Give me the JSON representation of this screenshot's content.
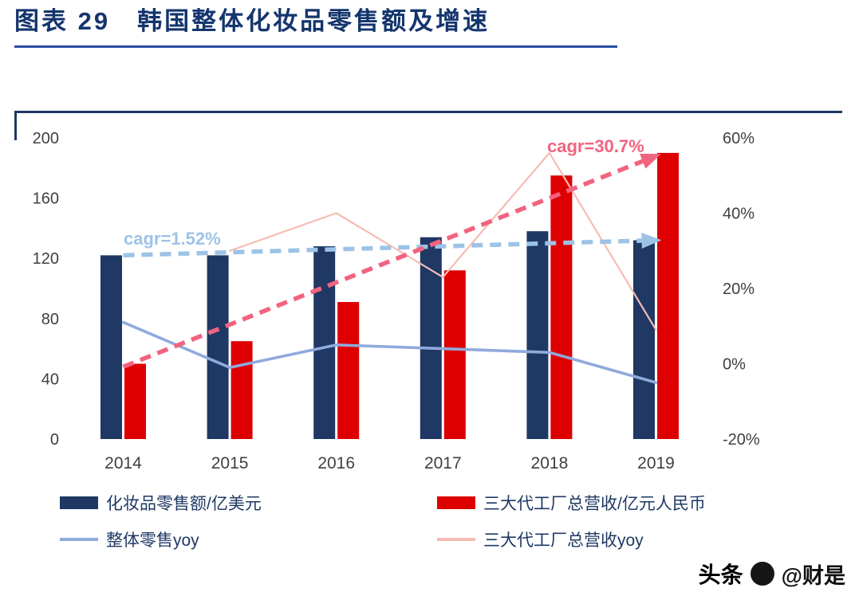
{
  "page": {
    "title": "图表 29　韩国整体化妆品零售额及增速"
  },
  "watermark": {
    "platform": "头条",
    "handle": "@财是"
  },
  "chart_data": {
    "type": "bar",
    "subtype": "grouped-bars-with-yoy-lines",
    "title": "韩国整体化妆品零售额及增速",
    "grid": false,
    "legend_position": "bottom",
    "categories": [
      "2014",
      "2015",
      "2016",
      "2017",
      "2018",
      "2019"
    ],
    "axes": {
      "left": {
        "range": [
          0,
          200
        ],
        "ticks": [
          0,
          40,
          80,
          120,
          160,
          200
        ]
      },
      "right": {
        "range": [
          -20,
          60
        ],
        "ticks": [
          -20,
          0,
          20,
          40,
          60
        ],
        "tick_labels": [
          "-20%",
          "0%",
          "20%",
          "40%",
          "60%"
        ]
      }
    },
    "series": [
      {
        "name": "化妆品零售额/亿美元",
        "type": "bar",
        "axis": "left",
        "color": "#1F3864",
        "values": [
          122,
          122,
          128,
          134,
          138,
          132
        ]
      },
      {
        "name": "三大代工厂总营收/亿元人民币",
        "type": "bar",
        "axis": "left",
        "color": "#DE0000",
        "values": [
          50,
          65,
          91,
          112,
          175,
          190
        ]
      },
      {
        "name": "整体零售yoy",
        "type": "line",
        "axis": "right",
        "color": "#8FAADC",
        "values": [
          11,
          -1,
          5,
          4,
          3,
          -5
        ]
      },
      {
        "name": "三大代工厂总营收yoy",
        "type": "line",
        "axis": "right",
        "color": "#F6BCB4",
        "values": [
          null,
          30,
          40,
          23,
          56,
          9
        ]
      }
    ],
    "annotations": [
      {
        "text": "cagr=1.52%",
        "color": "#9DC3E6",
        "axis": "left",
        "from": {
          "category_index": 0,
          "value": 122
        },
        "to": {
          "category_index": 5,
          "value": 132
        }
      },
      {
        "text": "cagr=30.7%",
        "color": "#F2637F",
        "axis": "left",
        "from": {
          "category_index": 0,
          "value": 48
        },
        "to": {
          "category_index": 5,
          "value": 188
        }
      }
    ],
    "legend": [
      {
        "label": "化妆品零售额/亿美元",
        "swatch": "rect",
        "color": "#1F3864"
      },
      {
        "label": "三大代工厂总营收/亿元人民币",
        "swatch": "rect",
        "color": "#DE0000"
      },
      {
        "label": "整体零售yoy",
        "swatch": "line",
        "color": "#8FAADC"
      },
      {
        "label": "三大代工厂总营收yoy",
        "swatch": "line",
        "color": "#F6BCB4"
      }
    ]
  }
}
